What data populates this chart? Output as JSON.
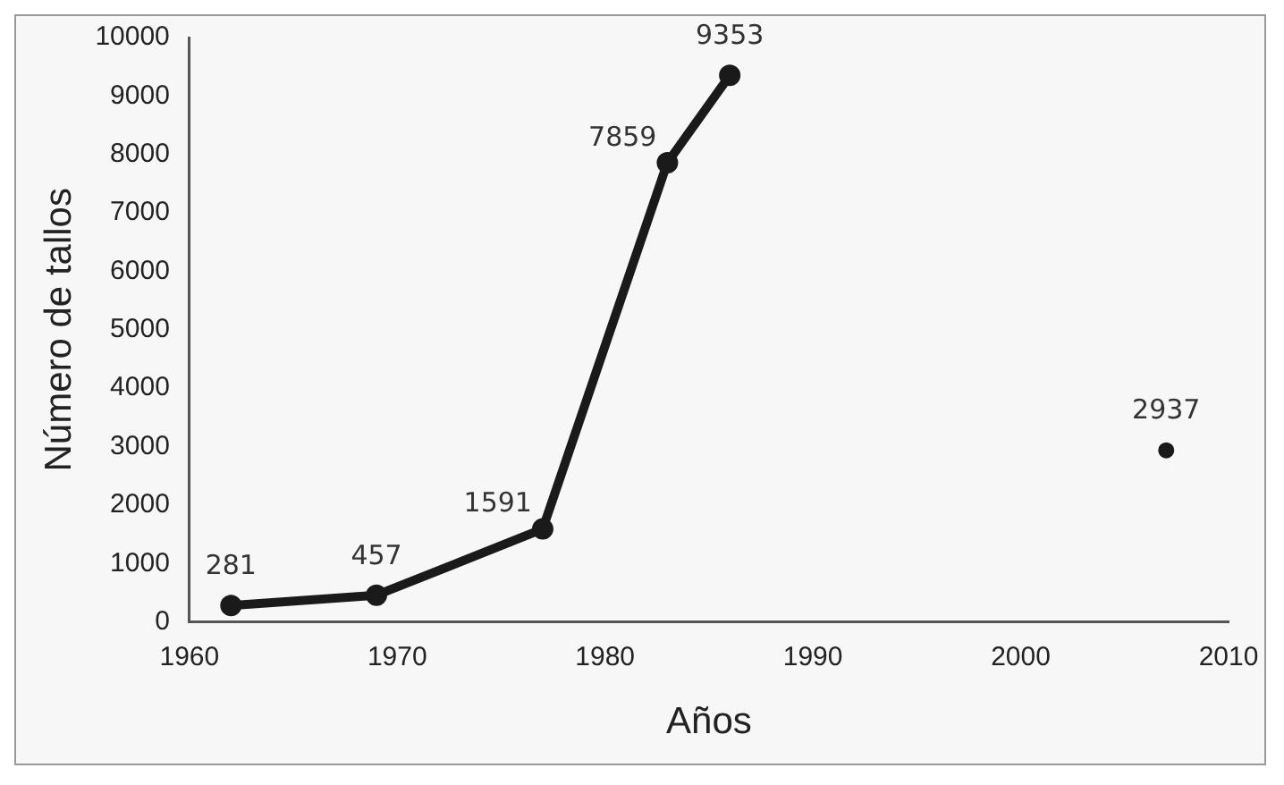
{
  "chart_data": {
    "type": "line",
    "xlabel": "Años",
    "ylabel": "Número de tallos",
    "series": [
      {
        "color": "#1a1a1a",
        "x": [
          1962,
          1969,
          1977,
          1983,
          1986
        ],
        "values": [
          281,
          457,
          1591,
          7859,
          9353
        ]
      },
      {
        "type": "scatter",
        "color": "#1a1a1a",
        "x": [
          2007
        ],
        "values": [
          2937
        ]
      }
    ],
    "xlim": [
      1960,
      2010
    ],
    "xticks": [
      1960,
      1970,
      1980,
      1990,
      2000,
      2010
    ],
    "ylim": [
      0,
      10000
    ],
    "yticks": [
      0,
      1000,
      2000,
      3000,
      4000,
      5000,
      6000,
      7000,
      8000,
      9000,
      10000
    ],
    "grid": false,
    "legend": false,
    "marker": "circle",
    "line_style": "solid",
    "data_labels": true
  }
}
